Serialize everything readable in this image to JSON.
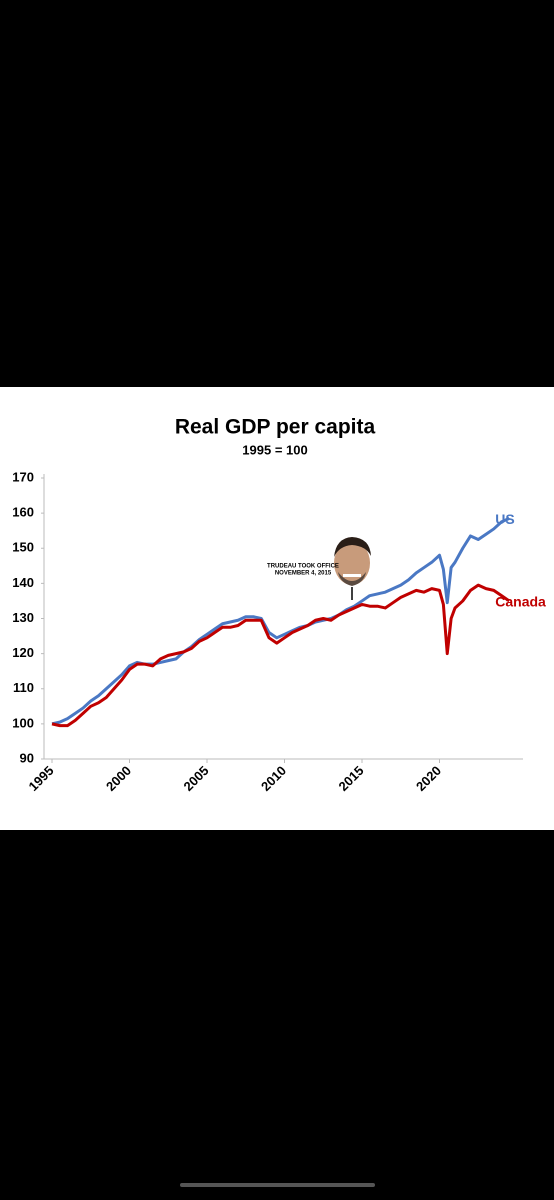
{
  "chart_data": {
    "type": "line",
    "title": "Real GDP per capita",
    "subtitle": "1995 = 100",
    "annotation": {
      "line1": "TRUDEAU TOOK OFFICE",
      "line2": "NOVEMBER 4, 2015",
      "x": 2015.8
    },
    "x": [
      1995,
      1995.5,
      1996,
      1996.5,
      1997,
      1997.5,
      1998,
      1998.5,
      1999,
      1999.5,
      2000,
      2000.5,
      2001,
      2001.5,
      2002,
      2002.5,
      2003,
      2003.5,
      2004,
      2004.5,
      2005,
      2005.5,
      2006,
      2006.5,
      2007,
      2007.5,
      2008,
      2008.5,
      2009,
      2009.5,
      2010,
      2010.5,
      2011,
      2011.5,
      2012,
      2012.5,
      2013,
      2013.5,
      2014,
      2014.5,
      2015,
      2015.5,
      2016,
      2016.5,
      2017,
      2017.5,
      2018,
      2018.5,
      2019,
      2019.5,
      2020,
      2020.25,
      2020.5,
      2020.75,
      2021,
      2021.5,
      2022,
      2022.5,
      2023,
      2023.5,
      2024,
      2024.5
    ],
    "series": [
      {
        "name": "US",
        "color": "#4a78c4",
        "values": [
          100,
          100.5,
          101.5,
          103,
          104.5,
          106.5,
          108,
          110,
          112,
          114,
          116.5,
          117.5,
          117,
          117,
          117.5,
          118,
          118.5,
          120.5,
          122,
          124,
          125.5,
          127,
          128.5,
          129,
          129.5,
          130.5,
          130.5,
          130,
          126,
          124.5,
          125.5,
          126.5,
          127.5,
          128,
          129,
          129.5,
          130,
          131,
          132.5,
          133.5,
          135,
          136.5,
          137,
          137.5,
          138.5,
          139.5,
          141,
          143,
          144.5,
          146,
          148,
          144,
          134.5,
          144.5,
          146,
          150,
          153.5,
          152.5,
          154,
          155.5,
          157.5,
          158.5
        ]
      },
      {
        "name": "Canada",
        "color": "#c00000",
        "values": [
          100,
          99.5,
          99.5,
          101,
          103,
          105,
          106,
          107.5,
          110,
          112.5,
          115.5,
          117,
          117,
          116.5,
          118.5,
          119.5,
          120,
          120.5,
          121.5,
          123.5,
          124.5,
          126,
          127.5,
          127.5,
          128,
          129.5,
          129.5,
          129.5,
          124.5,
          123,
          124.5,
          126,
          127,
          128,
          129.5,
          130,
          129.5,
          131,
          132,
          133,
          134,
          133.5,
          133.5,
          133,
          134.5,
          136,
          137,
          138,
          137.5,
          138.5,
          138,
          134,
          120,
          130,
          133,
          135,
          138,
          139.5,
          138.5,
          138,
          136.5,
          135
        ]
      }
    ],
    "xlim": [
      1995,
      2025
    ],
    "xticks": [
      1995,
      2000,
      2005,
      2010,
      2015,
      2020
    ],
    "ylim": [
      90,
      170
    ],
    "yticks": [
      90,
      100,
      110,
      120,
      130,
      140,
      150,
      160,
      170
    ],
    "grid": false
  }
}
